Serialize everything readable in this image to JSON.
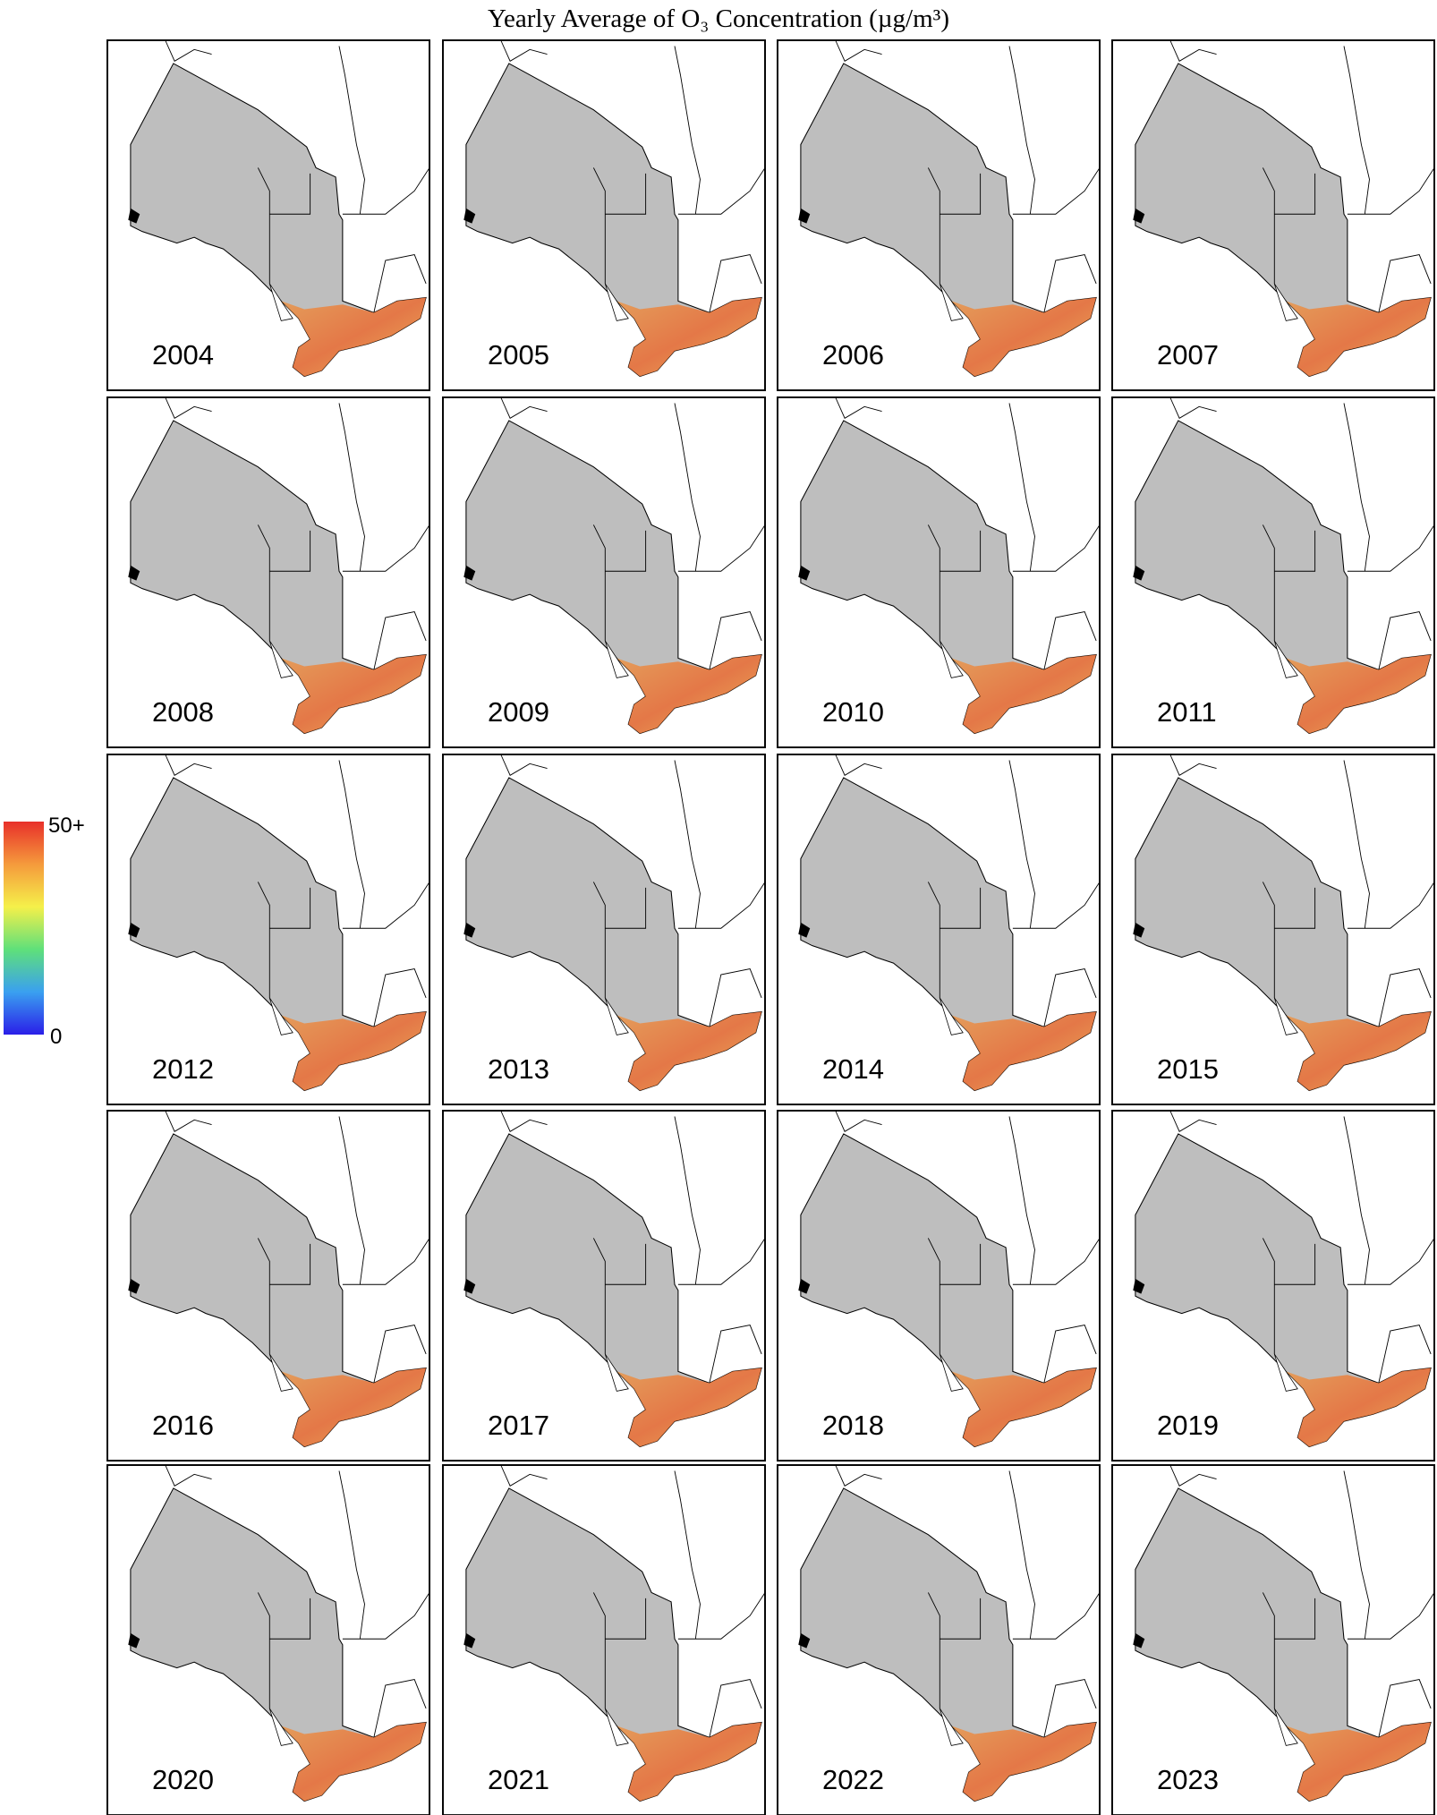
{
  "title": "Yearly Average of O₃ Concentration (µg/m³)",
  "colorbar": {
    "max_label": "50+",
    "min_label": "0"
  },
  "panels": [
    {
      "year": "2004"
    },
    {
      "year": "2005"
    },
    {
      "year": "2006"
    },
    {
      "year": "2007"
    },
    {
      "year": "2008"
    },
    {
      "year": "2009"
    },
    {
      "year": "2010"
    },
    {
      "year": "2011"
    },
    {
      "year": "2012"
    },
    {
      "year": "2013"
    },
    {
      "year": "2014"
    },
    {
      "year": "2015"
    },
    {
      "year": "2016"
    },
    {
      "year": "2017"
    },
    {
      "year": "2018"
    },
    {
      "year": "2019"
    },
    {
      "year": "2020"
    },
    {
      "year": "2021"
    },
    {
      "year": "2022"
    },
    {
      "year": "2023"
    }
  ]
}
